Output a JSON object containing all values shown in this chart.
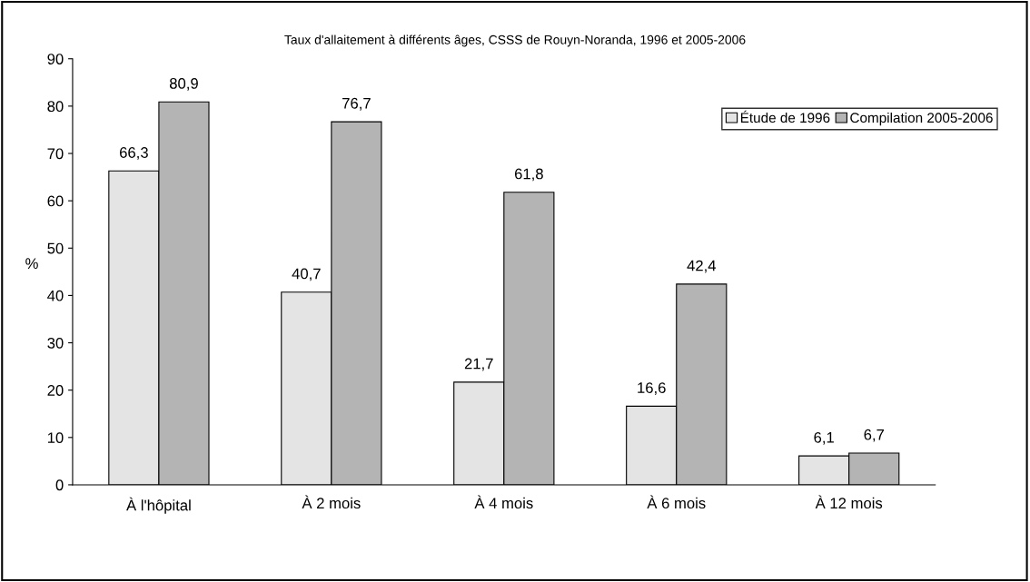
{
  "chart_data": {
    "type": "bar",
    "title": "Taux d'allaitement à différents âges, CSSS de Rouyn-Noranda, 1996 et 2005-2006",
    "ylabel": "%",
    "categories": [
      "À l'hôpital",
      "À 2 mois",
      "À 4 mois",
      "À 6 mois",
      "À 12 mois"
    ],
    "series": [
      {
        "name": "Étude de 1996",
        "color": "#e4e4e4",
        "values": [
          66.3,
          40.7,
          21.7,
          16.6,
          6.1
        ],
        "value_labels": [
          "66,3",
          "40,7",
          "21,7",
          "16,6",
          "6,1"
        ]
      },
      {
        "name": "Compilation 2005-2006",
        "color": "#b4b4b4",
        "values": [
          80.9,
          76.7,
          61.8,
          42.4,
          6.7
        ],
        "value_labels": [
          "80,9",
          "76,7",
          "61,8",
          "42,4",
          "6,7"
        ]
      }
    ],
    "ylim": [
      0,
      90
    ],
    "yticks": [
      0,
      10,
      20,
      30,
      40,
      50,
      60,
      70,
      80,
      90
    ],
    "grid": false,
    "legend": "top right"
  }
}
